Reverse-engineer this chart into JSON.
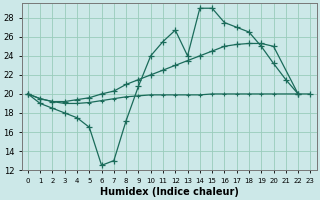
{
  "xlabel": "Humidex (Indice chaleur)",
  "bg_color": "#cce8e8",
  "grid_color": "#99ccbb",
  "line_color": "#1a6b5a",
  "xlim_min": -0.5,
  "xlim_max": 23.5,
  "ylim_min": 12,
  "ylim_max": 29.5,
  "yticks": [
    12,
    14,
    16,
    18,
    20,
    22,
    24,
    26,
    28
  ],
  "xticks": [
    0,
    1,
    2,
    3,
    4,
    5,
    6,
    7,
    8,
    9,
    10,
    11,
    12,
    13,
    14,
    15,
    16,
    17,
    18,
    19,
    20,
    21,
    22,
    23
  ],
  "line1_x": [
    0,
    1,
    2,
    3,
    4,
    5,
    6,
    7,
    8,
    9,
    10,
    11,
    12,
    13,
    14,
    15,
    16,
    17,
    18,
    19,
    20,
    21,
    22,
    23
  ],
  "line1_y": [
    20,
    19,
    18.5,
    18,
    17.5,
    16.5,
    12.5,
    13,
    17.2,
    20.8,
    24,
    25.5,
    26.7,
    24,
    29,
    29,
    27.5,
    27,
    26.5,
    25,
    23.2,
    21.5,
    20,
    20
  ],
  "line2_x": [
    0,
    1,
    2,
    3,
    4,
    5,
    6,
    7,
    8,
    9,
    10,
    11,
    12,
    13,
    14,
    15,
    16,
    17,
    18,
    19,
    20,
    22
  ],
  "line2_y": [
    20,
    19.5,
    19.2,
    19.2,
    19.4,
    19.6,
    20,
    20.3,
    21,
    21.5,
    22,
    22.5,
    23,
    23.5,
    24,
    24.5,
    25,
    25.2,
    25.3,
    25.3,
    25.0,
    20
  ],
  "line3_x": [
    0,
    1,
    2,
    3,
    4,
    5,
    6,
    7,
    8,
    9,
    10,
    11,
    12,
    13,
    14,
    15,
    16,
    17,
    18,
    19,
    20,
    22
  ],
  "line3_y": [
    20,
    19.5,
    19.2,
    19.0,
    19.0,
    19.1,
    19.3,
    19.5,
    19.7,
    19.8,
    19.9,
    19.9,
    19.9,
    19.9,
    19.9,
    20.0,
    20.0,
    20.0,
    20.0,
    20.0,
    20.0,
    20
  ]
}
